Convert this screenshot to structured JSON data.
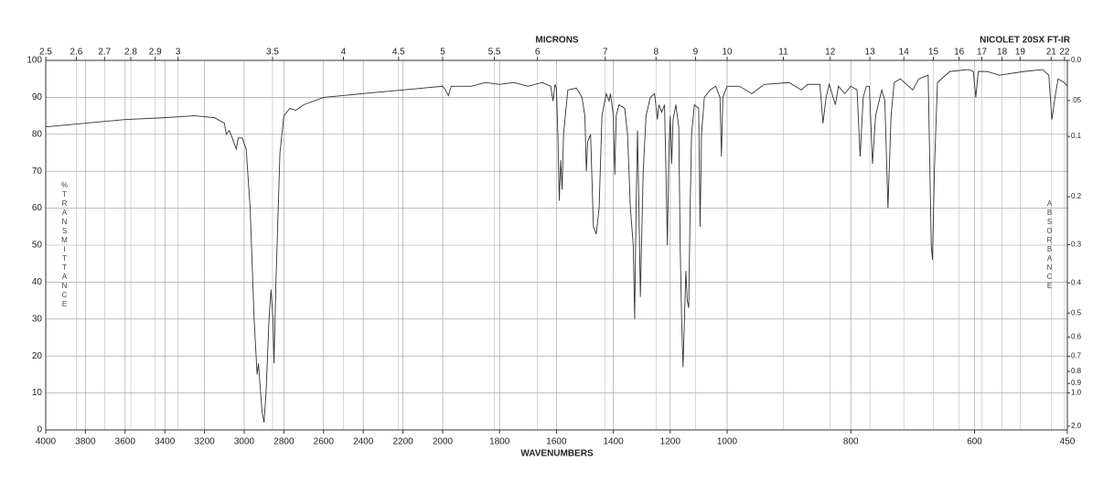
{
  "chart_data": {
    "type": "line",
    "title": "NICOLET 20SX FT-IR",
    "xlabel": "WAVENUMBERS",
    "x2label": "MICRONS",
    "ylabel": "%TRANSMITTANCE",
    "y2label": "ABSORBANCE",
    "color": "#333333",
    "grid": true,
    "xlim": [
      4000,
      450
    ],
    "xbreaks": [
      2000,
      1000
    ],
    "xticks": [
      4000,
      3800,
      3600,
      3400,
      3200,
      3000,
      2800,
      2600,
      2400,
      2200,
      2000,
      1800,
      1600,
      1400,
      1200,
      1000,
      800,
      600,
      450
    ],
    "x2scale": "microns",
    "x2ticks": [
      2.5,
      2.6,
      2.7,
      2.8,
      2.9,
      3,
      3.5,
      4,
      4.5,
      5,
      5.5,
      6,
      7,
      8,
      9,
      10,
      11,
      12,
      13,
      14,
      15,
      16,
      17,
      18,
      19,
      21,
      22
    ],
    "ylim": [
      0,
      100
    ],
    "yticks": [
      0,
      10,
      20,
      30,
      40,
      50,
      60,
      70,
      80,
      90,
      100
    ],
    "y2scale": "absorbance",
    "y2ticks": [
      {
        "value": 0,
        "label": "0.0"
      },
      {
        "value": 0.05,
        "label": ".05"
      },
      0.1,
      0.2,
      0.3,
      0.4,
      0.5,
      0.6,
      0.7,
      0.8,
      0.9,
      {
        "value": 1,
        "label": "1.0"
      },
      {
        "value": 2,
        "label": "2.0"
      }
    ],
    "x": [
      4000,
      3800,
      3600,
      3400,
      3250,
      3150,
      3100,
      3090,
      3075,
      3060,
      3040,
      3030,
      3010,
      2990,
      2970,
      2950,
      2935,
      2928,
      2920,
      2910,
      2900,
      2890,
      2875,
      2865,
      2855,
      2850,
      2840,
      2820,
      2800,
      2770,
      2740,
      2700,
      2600,
      2400,
      2200,
      2000,
      1990,
      1980,
      1970,
      1900,
      1850,
      1800,
      1750,
      1700,
      1650,
      1620,
      1612,
      1605,
      1600,
      1595,
      1590,
      1585,
      1580,
      1575,
      1560,
      1530,
      1510,
      1500,
      1495,
      1490,
      1480,
      1470,
      1460,
      1450,
      1440,
      1425,
      1415,
      1410,
      1400,
      1395,
      1390,
      1380,
      1360,
      1350,
      1340,
      1330,
      1325,
      1320,
      1315,
      1310,
      1305,
      1295,
      1285,
      1270,
      1255,
      1245,
      1240,
      1230,
      1220,
      1215,
      1210,
      1205,
      1200,
      1195,
      1190,
      1180,
      1170,
      1165,
      1160,
      1155,
      1150,
      1145,
      1140,
      1135,
      1130,
      1125,
      1115,
      1100,
      1095,
      1090,
      1080,
      1060,
      1040,
      1025,
      1020,
      1015,
      1000,
      980,
      960,
      940,
      900,
      880,
      870,
      850,
      845,
      840,
      835,
      825,
      820,
      810,
      800,
      790,
      785,
      780,
      775,
      770,
      765,
      760,
      750,
      745,
      740,
      735,
      730,
      720,
      700,
      690,
      675,
      670,
      668,
      665,
      660,
      640,
      610,
      602,
      598,
      594,
      580,
      560,
      520,
      490,
      480,
      475,
      470,
      465,
      455,
      450
    ],
    "values": [
      82,
      83,
      84,
      84.5,
      85,
      84.5,
      83,
      80,
      81,
      79,
      76,
      79,
      79,
      76,
      60,
      30,
      15,
      18,
      12,
      5,
      2,
      10,
      30,
      38,
      30,
      18,
      40,
      75,
      85,
      87,
      86.5,
      88,
      90,
      91,
      92,
      93,
      92,
      90.5,
      93,
      93,
      94,
      93.5,
      94,
      93,
      94,
      93,
      89,
      93.5,
      92.5,
      80,
      62,
      73,
      65,
      80,
      92,
      92.5,
      90,
      85,
      70,
      78,
      80,
      55,
      53,
      60,
      85,
      91,
      89,
      91,
      85,
      69,
      85,
      88,
      87,
      80,
      60,
      50,
      30,
      60,
      81,
      60,
      36,
      70,
      85,
      90,
      91,
      84,
      88,
      86,
      88,
      70,
      50,
      75,
      85,
      72,
      84,
      88,
      82,
      50,
      30,
      17,
      30,
      43,
      35,
      33,
      60,
      80,
      88,
      87,
      55,
      80,
      90,
      92,
      93,
      90,
      74,
      90,
      93,
      93,
      91,
      93.5,
      94,
      92,
      93.5,
      93.5,
      83,
      90,
      93.5,
      88,
      93,
      91,
      93,
      92,
      74,
      90,
      93,
      93,
      72,
      85,
      92,
      89,
      60,
      85,
      94,
      95,
      92,
      95,
      96,
      50,
      46,
      70,
      94,
      97,
      97.5,
      97,
      90,
      97,
      97,
      96,
      97,
      97.5,
      96,
      84,
      90,
      95,
      94,
      93
    ]
  }
}
